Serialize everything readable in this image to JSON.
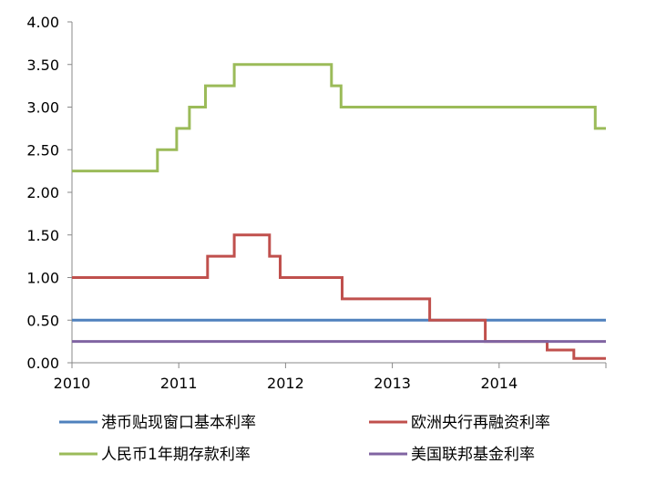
{
  "chart_data": {
    "type": "line",
    "title": "",
    "xlabel": "",
    "ylabel": "",
    "xlim": [
      2010.0,
      2015.0
    ],
    "ylim": [
      0,
      4
    ],
    "y_ticks": [
      "0.00",
      "0.50",
      "1.00",
      "1.50",
      "2.00",
      "2.50",
      "3.00",
      "3.50",
      "4.00"
    ],
    "x_ticks": [
      "2010",
      "2011",
      "2012",
      "2013",
      "2014"
    ],
    "x_tick_values": [
      2010,
      2011,
      2012,
      2013,
      2014
    ],
    "grid": false,
    "legend_position": "bottom",
    "step": true,
    "series": [
      {
        "name": "港币贴现窗口基本利率",
        "color": "#4f81bd",
        "points": [
          [
            2010.0,
            0.5
          ],
          [
            2015.0,
            0.5
          ]
        ]
      },
      {
        "name": "欧洲央行再融资利率",
        "color": "#c0504d",
        "points": [
          [
            2010.0,
            1.0
          ],
          [
            2011.27,
            1.25
          ],
          [
            2011.52,
            1.5
          ],
          [
            2011.85,
            1.25
          ],
          [
            2011.95,
            1.0
          ],
          [
            2012.53,
            0.75
          ],
          [
            2013.35,
            0.5
          ],
          [
            2013.87,
            0.25
          ],
          [
            2014.45,
            0.15
          ],
          [
            2014.7,
            0.05
          ],
          [
            2015.0,
            0.05
          ]
        ]
      },
      {
        "name": "人民币1年期存款利率",
        "color": "#9bbb59",
        "points": [
          [
            2010.0,
            2.25
          ],
          [
            2010.8,
            2.5
          ],
          [
            2010.98,
            2.75
          ],
          [
            2011.1,
            3.0
          ],
          [
            2011.25,
            3.25
          ],
          [
            2011.52,
            3.5
          ],
          [
            2012.43,
            3.25
          ],
          [
            2012.52,
            3.0
          ],
          [
            2014.9,
            2.75
          ],
          [
            2015.0,
            2.75
          ]
        ]
      },
      {
        "name": "美国联邦基金利率",
        "color": "#8064a2",
        "points": [
          [
            2010.0,
            0.25
          ],
          [
            2015.0,
            0.25
          ]
        ]
      }
    ]
  }
}
